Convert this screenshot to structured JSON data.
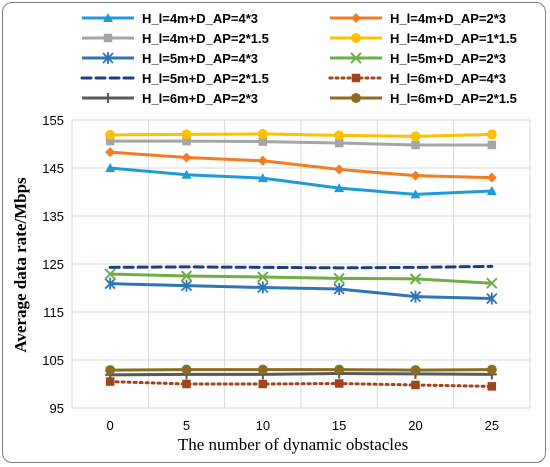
{
  "chart_data": {
    "type": "line",
    "xlabel": "The number of dynamic obstacles",
    "ylabel": "Average data rate/Mbps",
    "x": [
      0,
      5,
      10,
      15,
      20,
      25
    ],
    "xticks": [
      "0",
      "5",
      "10",
      "15",
      "20",
      "25"
    ],
    "ylim": [
      95,
      155
    ],
    "yticks": [
      "95",
      "105",
      "115",
      "125",
      "135",
      "145",
      "155"
    ],
    "grid": true,
    "legend_position": "top",
    "series": [
      {
        "name": "H_l=4m+D_AP=4*3",
        "values": [
          145.0,
          143.6,
          142.9,
          140.8,
          139.5,
          140.2
        ],
        "color": "#1f9bd7",
        "marker": "triangle",
        "dash": "solid"
      },
      {
        "name": "H_l=4m+D_AP=2*3",
        "values": [
          148.3,
          147.2,
          146.5,
          144.7,
          143.4,
          143.0
        ],
        "color": "#f47b20",
        "marker": "diamond",
        "dash": "solid"
      },
      {
        "name": "H_l=4m+D_AP=2*1.5",
        "values": [
          150.6,
          150.6,
          150.5,
          150.2,
          149.8,
          149.8
        ],
        "color": "#a5a5a5",
        "marker": "square",
        "dash": "solid"
      },
      {
        "name": "H_l=4m+D_AP=1*1.5",
        "values": [
          151.9,
          152.0,
          152.1,
          151.8,
          151.6,
          152.0
        ],
        "color": "#ffc000",
        "marker": "circle",
        "dash": "solid"
      },
      {
        "name": "H_l=5m+D_AP=4*3",
        "values": [
          120.9,
          120.5,
          120.1,
          119.8,
          118.2,
          117.8
        ],
        "color": "#2e75b6",
        "marker": "asterisk",
        "dash": "solid"
      },
      {
        "name": "H_l=5m+D_AP=2*3",
        "values": [
          122.9,
          122.5,
          122.3,
          122.0,
          121.9,
          121.0
        ],
        "color": "#70ad47",
        "marker": "x",
        "dash": "solid"
      },
      {
        "name": "H_l=5m+D_AP=2*1.5",
        "values": [
          124.3,
          124.4,
          124.3,
          124.2,
          124.3,
          124.5
        ],
        "color": "#1f3f7a",
        "marker": "none",
        "dash": "dashed"
      },
      {
        "name": "H_l=6m+D_AP=4*3",
        "values": [
          100.5,
          100.0,
          100.0,
          100.1,
          99.8,
          99.5
        ],
        "color": "#a0441e",
        "marker": "square",
        "dash": "dotted"
      },
      {
        "name": "H_l=6m+D_AP=2*3",
        "values": [
          101.9,
          102.0,
          102.0,
          102.2,
          102.1,
          102.0
        ],
        "color": "#595959",
        "marker": "plus",
        "dash": "solid"
      },
      {
        "name": "H_l=6m+D_AP=2*1.5",
        "values": [
          102.9,
          103.0,
          103.0,
          103.0,
          102.9,
          103.0
        ],
        "color": "#8c6d1f",
        "marker": "circle",
        "dash": "solid"
      }
    ]
  }
}
